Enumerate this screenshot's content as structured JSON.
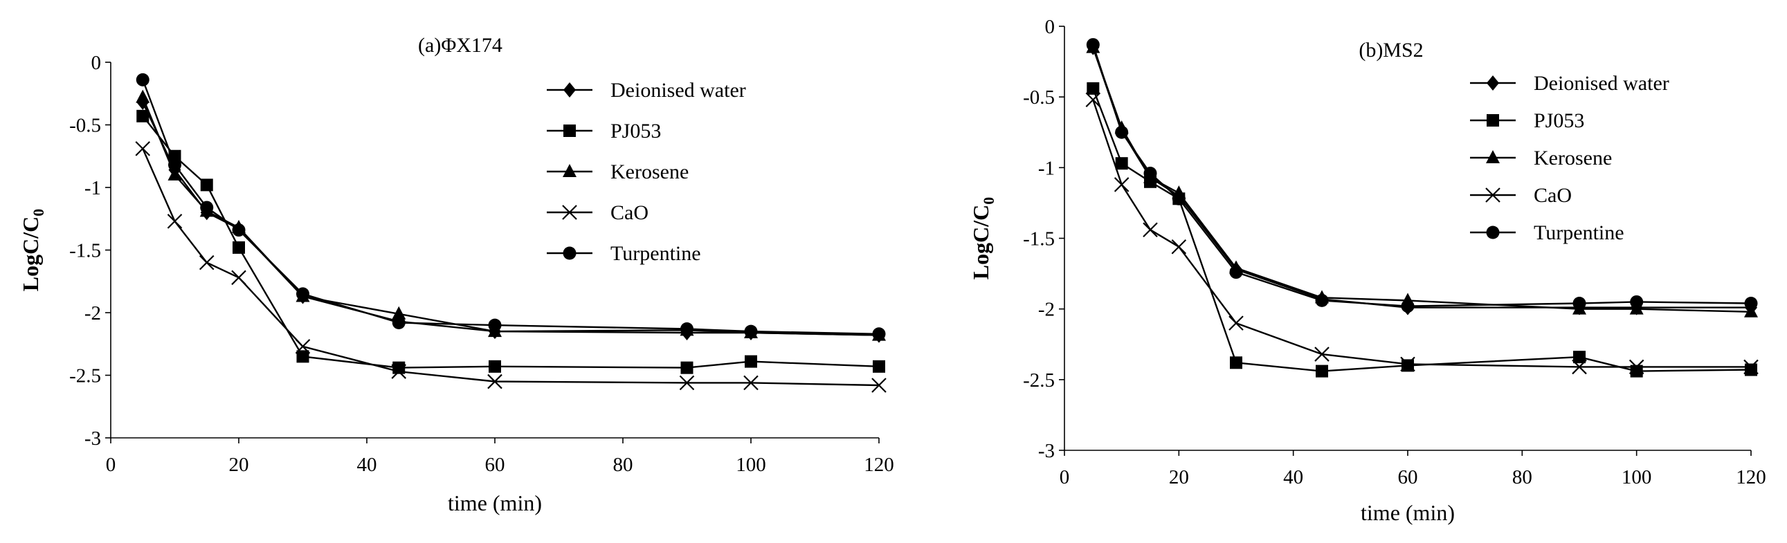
{
  "chart_data": [
    {
      "type": "line",
      "title": "(a)ΦX174",
      "xlabel": "time (min)",
      "ylabel_main": "LogC/C",
      "ylabel_sub": "0",
      "xlim": [
        0,
        120
      ],
      "ylim": [
        -3,
        0
      ],
      "xticks": [
        0,
        20,
        40,
        60,
        80,
        100,
        120
      ],
      "yticks": [
        0,
        -0.5,
        -1,
        -1.5,
        -2,
        -2.5,
        -3
      ],
      "xtick_labels": [
        "0",
        "20",
        "40",
        "60",
        "80",
        "100",
        "120"
      ],
      "ytick_labels": [
        "0",
        "-0.5",
        "-1",
        "-1.5",
        "-2",
        "-2.5",
        "-3"
      ],
      "grid": false,
      "legend": "top-right",
      "x": [
        5,
        10,
        15,
        20,
        30,
        45,
        60,
        90,
        100,
        120
      ],
      "series": [
        {
          "name": "Deionised water",
          "marker": "diamond",
          "values": [
            -0.32,
            -0.86,
            -1.2,
            -1.33,
            -1.87,
            -2.07,
            -2.15,
            -2.16,
            -2.16,
            -2.18
          ]
        },
        {
          "name": "PJ053",
          "marker": "square",
          "values": [
            -0.43,
            -0.75,
            -0.98,
            -1.48,
            -2.35,
            -2.44,
            -2.43,
            -2.44,
            -2.39,
            -2.43
          ]
        },
        {
          "name": "Kerosene",
          "marker": "triangle",
          "values": [
            -0.28,
            -0.9,
            -1.19,
            -1.32,
            -1.87,
            -2.01,
            -2.15,
            -2.14,
            -2.16,
            -2.18
          ]
        },
        {
          "name": "CaO",
          "marker": "cross",
          "values": [
            -0.69,
            -1.27,
            -1.6,
            -1.72,
            -2.27,
            -2.47,
            -2.55,
            -2.56,
            -2.56,
            -2.58
          ]
        },
        {
          "name": "Turpentine",
          "marker": "circle",
          "values": [
            -0.14,
            -0.82,
            -1.16,
            -1.34,
            -1.85,
            -2.08,
            -2.1,
            -2.13,
            -2.15,
            -2.17
          ]
        }
      ]
    },
    {
      "type": "line",
      "title": "(b)MS2",
      "xlabel": "time (min)",
      "ylabel_main": "LogC/C",
      "ylabel_sub": "0",
      "xlim": [
        0,
        120
      ],
      "ylim": [
        -3,
        0
      ],
      "xticks": [
        0,
        20,
        40,
        60,
        80,
        100,
        120
      ],
      "yticks": [
        0,
        -0.5,
        -1,
        -1.5,
        -2,
        -2.5,
        -3
      ],
      "xtick_labels": [
        "0",
        "20",
        "40",
        "60",
        "80",
        "100",
        "120"
      ],
      "ytick_labels": [
        "0",
        "-0.5",
        "-1",
        "-1.5",
        "-2",
        "-2.5",
        "-3"
      ],
      "grid": false,
      "legend": "top-right",
      "x": [
        5,
        10,
        15,
        20,
        30,
        45,
        60,
        90,
        100,
        120
      ],
      "series": [
        {
          "name": "Deionised water",
          "marker": "diamond",
          "values": [
            -0.15,
            -0.74,
            -1.07,
            -1.2,
            -1.72,
            -1.93,
            -1.99,
            -1.99,
            -1.99,
            -1.99
          ]
        },
        {
          "name": "PJ053",
          "marker": "square",
          "values": [
            -0.44,
            -0.97,
            -1.1,
            -1.22,
            -2.38,
            -2.44,
            -2.4,
            -2.34,
            -2.44,
            -2.43
          ]
        },
        {
          "name": "Kerosene",
          "marker": "triangle",
          "values": [
            -0.15,
            -0.72,
            -1.07,
            -1.18,
            -1.71,
            -1.92,
            -1.94,
            -2.0,
            -2.0,
            -2.02
          ]
        },
        {
          "name": "CaO",
          "marker": "cross",
          "values": [
            -0.52,
            -1.12,
            -1.44,
            -1.56,
            -2.1,
            -2.32,
            -2.39,
            -2.41,
            -2.41,
            -2.41
          ]
        },
        {
          "name": "Turpentine",
          "marker": "circle",
          "values": [
            -0.13,
            -0.75,
            -1.04,
            -1.22,
            -1.74,
            -1.94,
            -1.98,
            -1.96,
            -1.95,
            -1.96
          ]
        }
      ]
    }
  ]
}
